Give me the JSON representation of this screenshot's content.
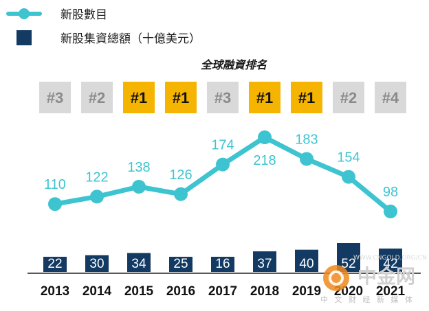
{
  "legend": {
    "line_label": "新股數目",
    "bar_label": "新股集資總額（十億美元）"
  },
  "subtitle": "全球融資排名",
  "colors": {
    "line": "#3dc4d0",
    "bar": "#123a62",
    "rank_top": "#f5b400",
    "rank_other": "#d9d9d9",
    "rank_top_text": "#111111",
    "rank_other_text": "#8a8a8a"
  },
  "watermark": {
    "text": "中金网",
    "sub": "中 文 财 经 新 媒 体",
    "url": "WWW.CNGOLD.ORG/CN"
  },
  "chart_data": {
    "type": "bar+line",
    "categories": [
      "2013",
      "2014",
      "2015",
      "2016",
      "2017",
      "2018",
      "2019",
      "2020",
      "2021"
    ],
    "rankings": [
      "#3",
      "#2",
      "#1",
      "#1",
      "#3",
      "#1",
      "#1",
      "#2",
      "#4"
    ],
    "series": [
      {
        "name": "新股數目",
        "type": "line",
        "values": [
          110,
          122,
          138,
          126,
          174,
          218,
          183,
          154,
          98
        ]
      },
      {
        "name": "新股集資總額（十億美元）",
        "type": "bar",
        "values": [
          22,
          30,
          34,
          25,
          16,
          37,
          40,
          52,
          42
        ]
      }
    ],
    "grid": false,
    "legend_position": "top-left"
  }
}
